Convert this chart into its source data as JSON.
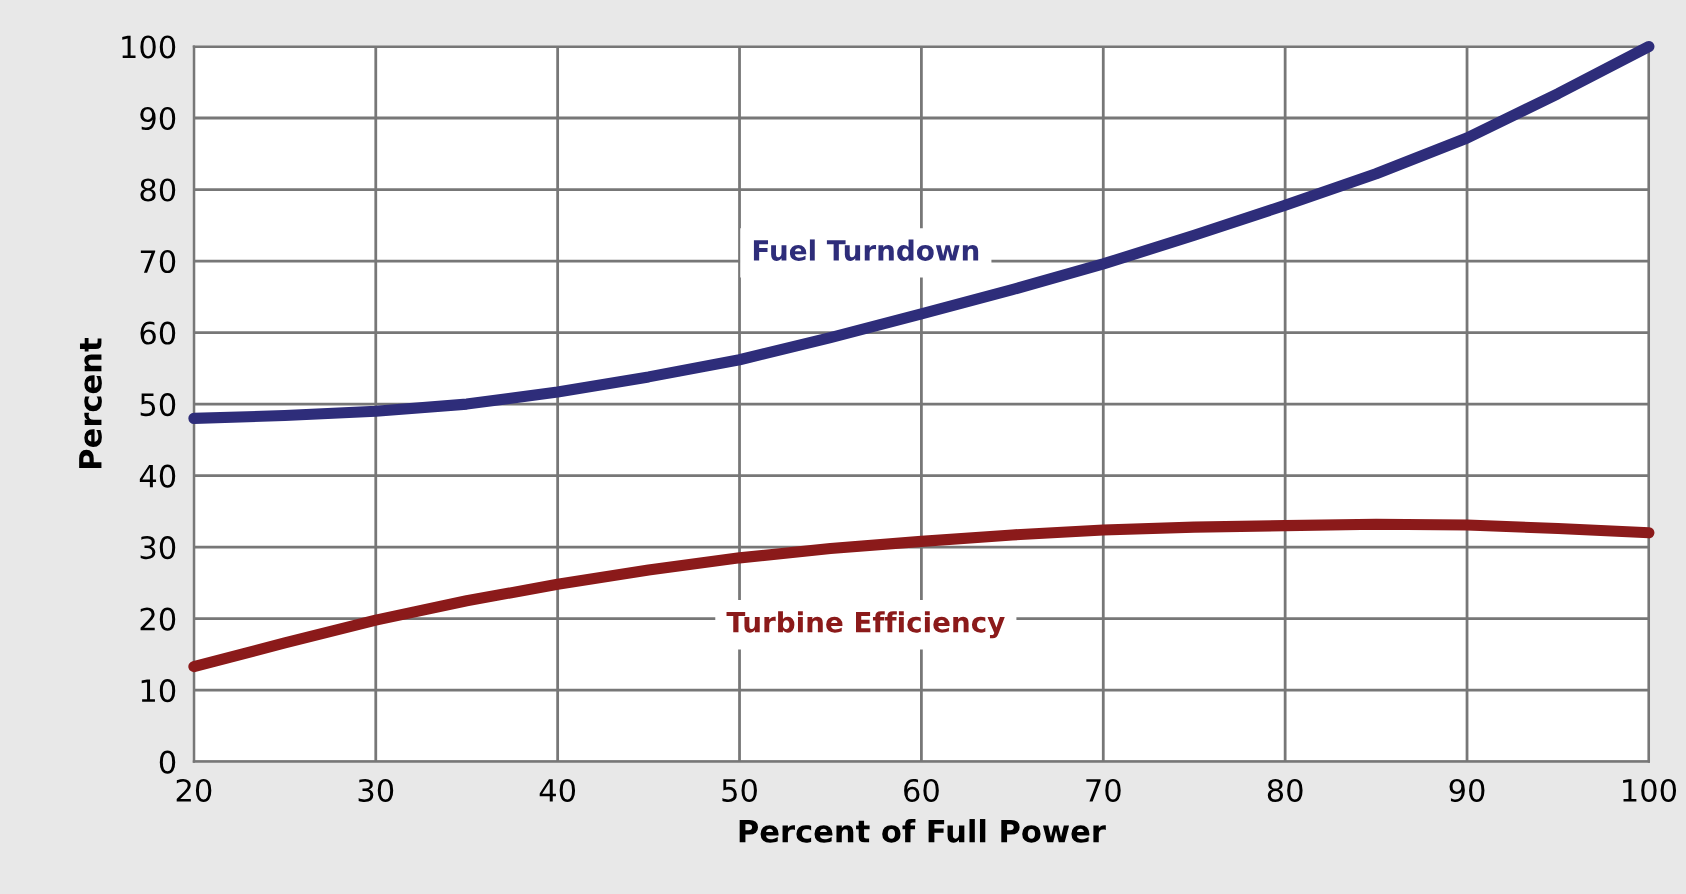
{
  "chart_data": {
    "type": "line",
    "xlabel": "Percent of Full Power",
    "ylabel": "Percent",
    "x": [
      20,
      25,
      30,
      35,
      40,
      45,
      50,
      55,
      60,
      65,
      70,
      75,
      80,
      85,
      90,
      95,
      100
    ],
    "series": [
      {
        "name": "Fuel Turndown",
        "color": "#2e2d7a",
        "values": [
          48,
          48.4,
          49,
          50,
          51.7,
          53.8,
          56.2,
          59.3,
          62.6,
          66,
          69.6,
          73.6,
          77.8,
          82.2,
          87.2,
          93.4,
          100
        ]
      },
      {
        "name": "Turbine Efficiency",
        "color": "#8b1a1a",
        "values": [
          13.3,
          16.6,
          19.8,
          22.5,
          24.8,
          26.8,
          28.5,
          29.8,
          30.8,
          31.7,
          32.4,
          32.8,
          33,
          33.2,
          33.1,
          32.6,
          32
        ]
      }
    ],
    "xlim": [
      20,
      100
    ],
    "xticks": [
      20,
      30,
      40,
      50,
      60,
      70,
      80,
      90,
      100
    ],
    "ylim": [
      0,
      100
    ],
    "yticks": [
      0,
      10,
      20,
      30,
      40,
      50,
      60,
      70,
      80,
      90,
      100
    ],
    "grid": true,
    "legend": false,
    "line_style": "solid",
    "marker": "none"
  }
}
